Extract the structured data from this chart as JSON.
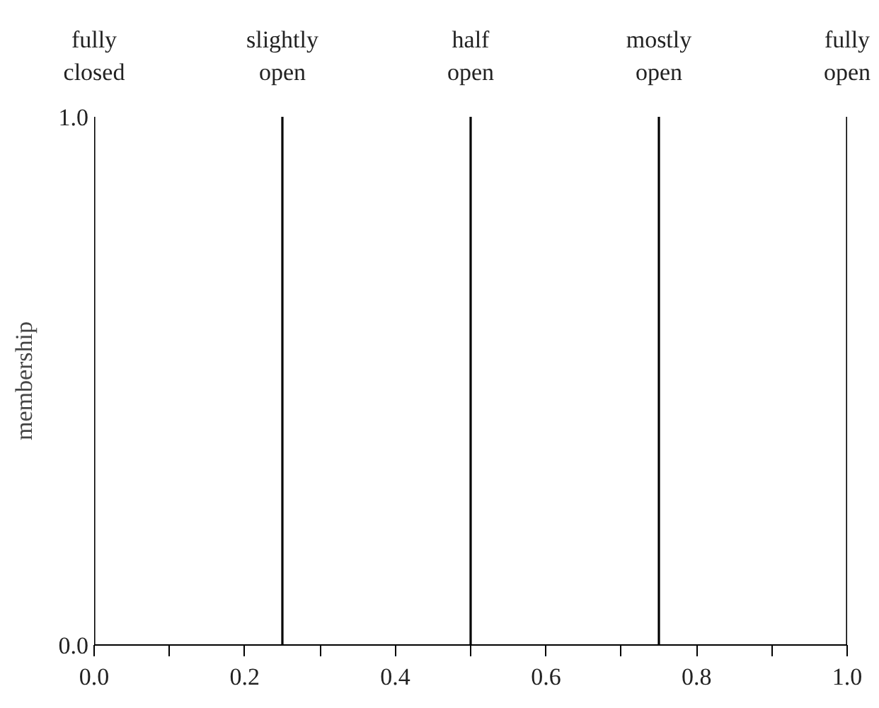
{
  "chart_data": {
    "type": "bar",
    "series": [
      {
        "name": "fully closed",
        "x": [
          0
        ],
        "values": [
          1
        ],
        "color": "#000000"
      },
      {
        "name": "slightly open",
        "x": [
          0.25
        ],
        "values": [
          1
        ],
        "color": "#000000"
      },
      {
        "name": "half open",
        "x": [
          0.5
        ],
        "values": [
          1
        ],
        "color": "#000000"
      },
      {
        "name": "mostly open",
        "x": [
          0.75
        ],
        "values": [
          1
        ],
        "color": "#000000"
      },
      {
        "name": "fully open",
        "x": [
          1
        ],
        "values": [
          1
        ],
        "color": "#000000"
      }
    ],
    "ylabel": "membership",
    "xlim": [
      0,
      1
    ],
    "ylim": [
      0,
      1
    ],
    "xticks": [
      {
        "value": 0,
        "label": "0.0"
      },
      {
        "value": 0.1,
        "label": null
      },
      {
        "value": 0.2,
        "label": "0.2"
      },
      {
        "value": 0.3,
        "label": null
      },
      {
        "value": 0.4,
        "label": "0.4"
      },
      {
        "value": 0.5,
        "label": null
      },
      {
        "value": 0.6,
        "label": "0.6"
      },
      {
        "value": 0.7,
        "label": null
      },
      {
        "value": 0.8,
        "label": "0.8"
      },
      {
        "value": 0.9,
        "label": null
      },
      {
        "value": 1,
        "label": "1.0"
      }
    ],
    "yticks": [
      {
        "value": 0,
        "label": "0.0"
      },
      {
        "value": 1,
        "label": "1.0"
      }
    ],
    "grid": false
  }
}
